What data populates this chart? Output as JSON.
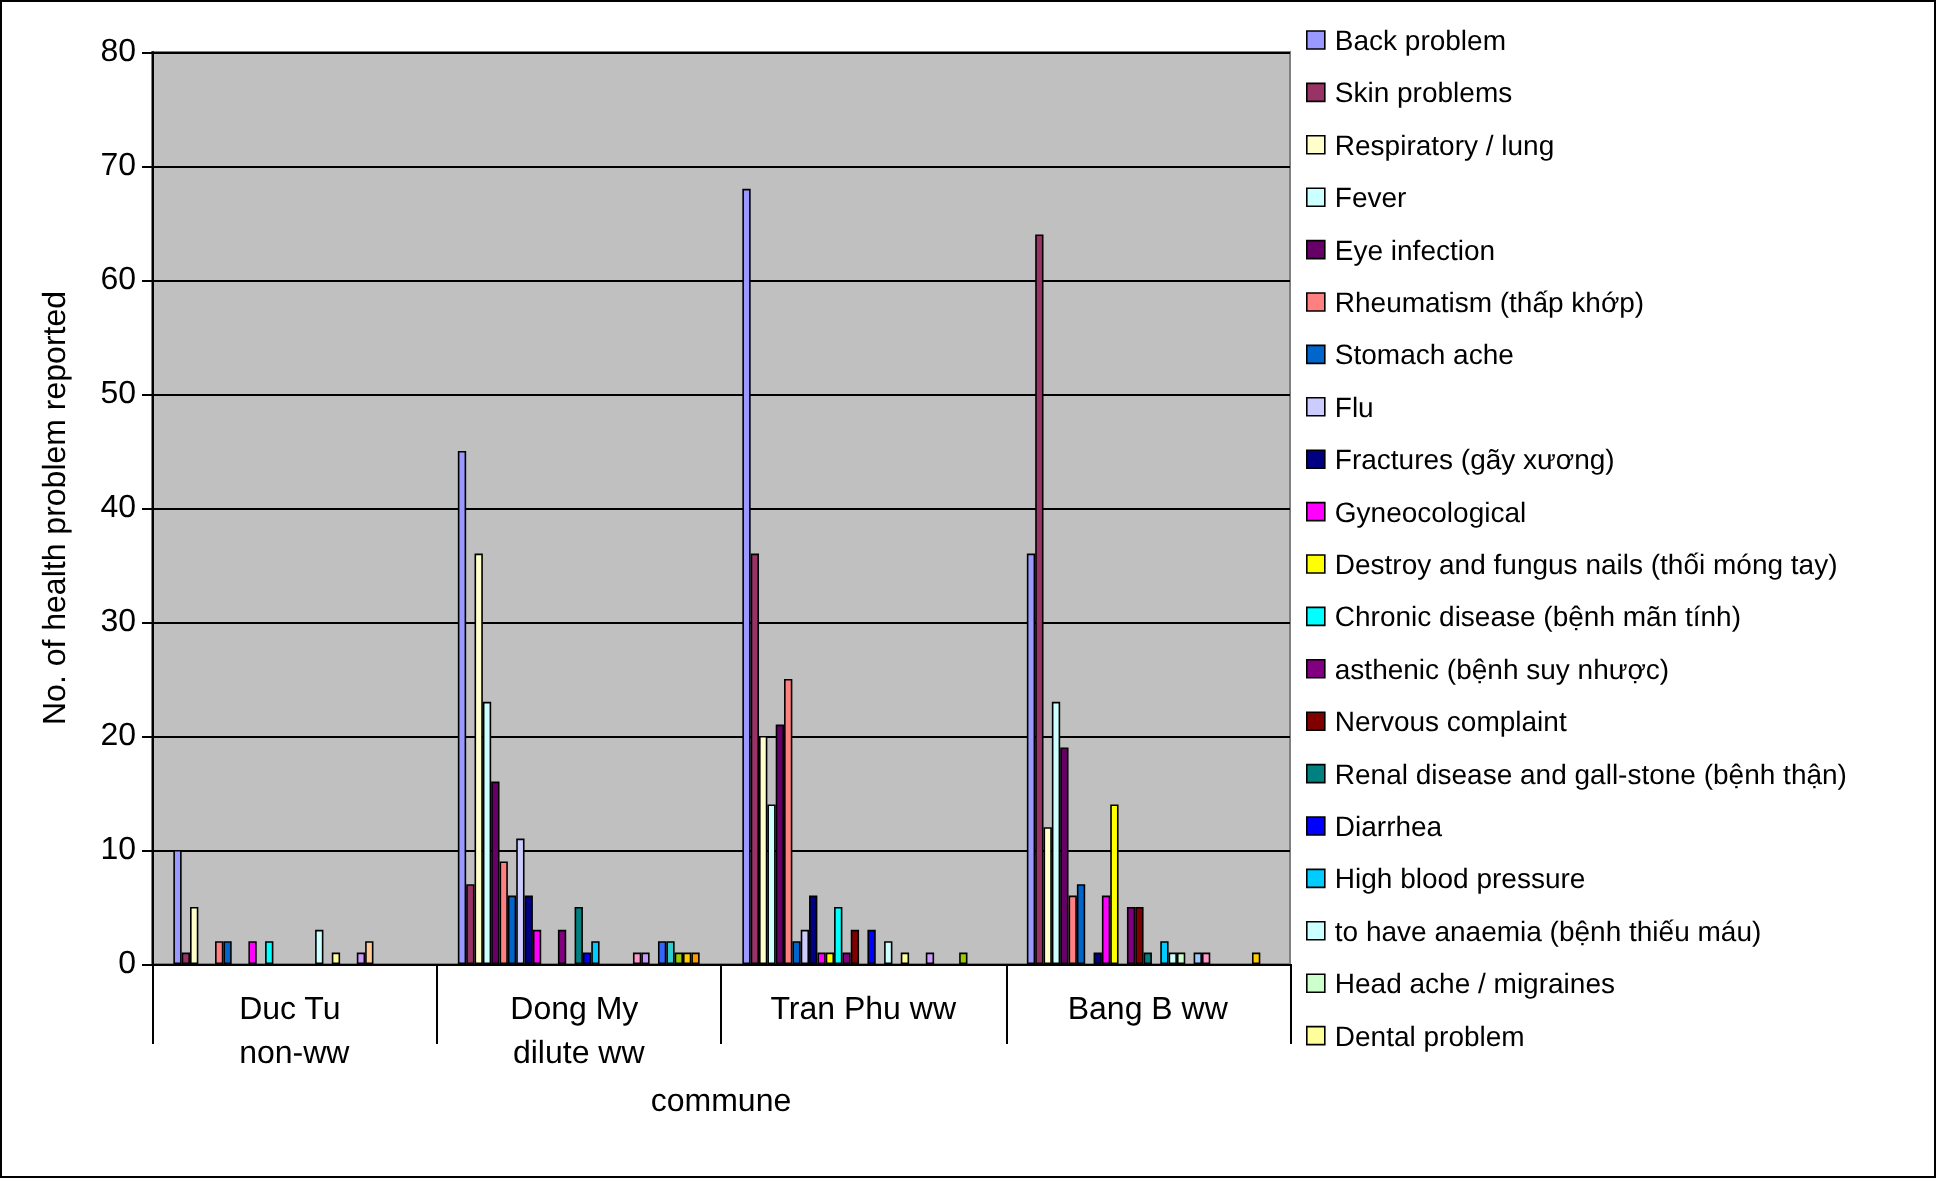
{
  "chart_data": {
    "type": "bar",
    "xlabel": "commune",
    "ylabel": "No. of health problem reported",
    "categories": [
      "Duc Tu non-ww",
      "Dong My dilute ww",
      "Tran Phu ww",
      "Bang B ww"
    ],
    "ylim": [
      0,
      80
    ],
    "yticks": [
      0,
      10,
      20,
      30,
      40,
      50,
      60,
      70,
      80
    ],
    "grid": "y",
    "legend": "right",
    "series": [
      {
        "name": "Back problem",
        "color": "#9999ff",
        "values": [
          10,
          45,
          68,
          36
        ]
      },
      {
        "name": "Skin problems",
        "color": "#993366",
        "values": [
          1,
          7,
          36,
          64
        ]
      },
      {
        "name": "Respiratory / lung",
        "color": "#ffffcc",
        "values": [
          5,
          36,
          20,
          12
        ]
      },
      {
        "name": "Fever",
        "color": "#ccffff",
        "values": [
          null,
          23,
          14,
          23
        ]
      },
      {
        "name": "Eye infection",
        "color": "#660066",
        "values": [
          null,
          16,
          21,
          19
        ]
      },
      {
        "name": "Rheumatism (thấp khớp)",
        "color": "#ff8080",
        "values": [
          2,
          9,
          25,
          6
        ]
      },
      {
        "name": "Stomach ache",
        "color": "#0066cc",
        "values": [
          2,
          6,
          2,
          7
        ]
      },
      {
        "name": "Flu",
        "color": "#ccccff",
        "values": [
          null,
          11,
          3,
          null
        ]
      },
      {
        "name": "Fractures (gãy xương)",
        "color": "#000080",
        "values": [
          null,
          6,
          6,
          1
        ]
      },
      {
        "name": "Gyneocological",
        "color": "#ff00ff",
        "values": [
          2,
          3,
          1,
          6
        ]
      },
      {
        "name": "Destroy and fungus nails (thối móng tay)",
        "color": "#ffff00",
        "values": [
          null,
          null,
          1,
          14
        ]
      },
      {
        "name": "Chronic disease (bệnh mãn tính)",
        "color": "#00ffff",
        "values": [
          2,
          null,
          5,
          null
        ]
      },
      {
        "name": "asthenic (bệnh suy nhược)",
        "color": "#800080",
        "values": [
          null,
          3,
          1,
          5
        ]
      },
      {
        "name": "Nervous complaint",
        "color": "#800000",
        "values": [
          null,
          null,
          3,
          5
        ]
      },
      {
        "name": "Renal disease and gall-stone (bệnh thận)",
        "color": "#008080",
        "values": [
          null,
          5,
          null,
          1
        ]
      },
      {
        "name": "Diarrhea",
        "color": "#0000ff",
        "values": [
          null,
          1,
          3,
          null
        ]
      },
      {
        "name": "High blood pressure",
        "color": "#00ccff",
        "values": [
          null,
          2,
          null,
          2
        ]
      },
      {
        "name": "to have anaemia (bệnh thiếu máu)",
        "color": "#ccffff",
        "values": [
          3,
          null,
          2,
          1
        ]
      },
      {
        "name": "Head ache / migraines",
        "color": "#ccffcc",
        "values": [
          null,
          null,
          null,
          1
        ]
      },
      {
        "name": "Dental problem",
        "color": "#ffff99",
        "values": [
          1,
          null,
          1,
          null
        ]
      },
      {
        "color": "#99ccff",
        "values": [
          null,
          null,
          null,
          1
        ]
      },
      {
        "color": "#ff99cc",
        "values": [
          null,
          1,
          null,
          1
        ]
      },
      {
        "color": "#cc99ff",
        "values": [
          1,
          1,
          1,
          null
        ]
      },
      {
        "color": "#ffcc99",
        "values": [
          2,
          null,
          null,
          null
        ]
      },
      {
        "color": "#3366ff",
        "values": [
          null,
          2,
          null,
          null
        ]
      },
      {
        "color": "#33cccc",
        "values": [
          null,
          2,
          null,
          null
        ]
      },
      {
        "color": "#99cc00",
        "values": [
          null,
          1,
          1,
          null
        ]
      },
      {
        "color": "#ffcc00",
        "values": [
          null,
          1,
          null,
          1
        ]
      },
      {
        "color": "#ff9900",
        "values": [
          null,
          1,
          null,
          null
        ]
      }
    ]
  }
}
